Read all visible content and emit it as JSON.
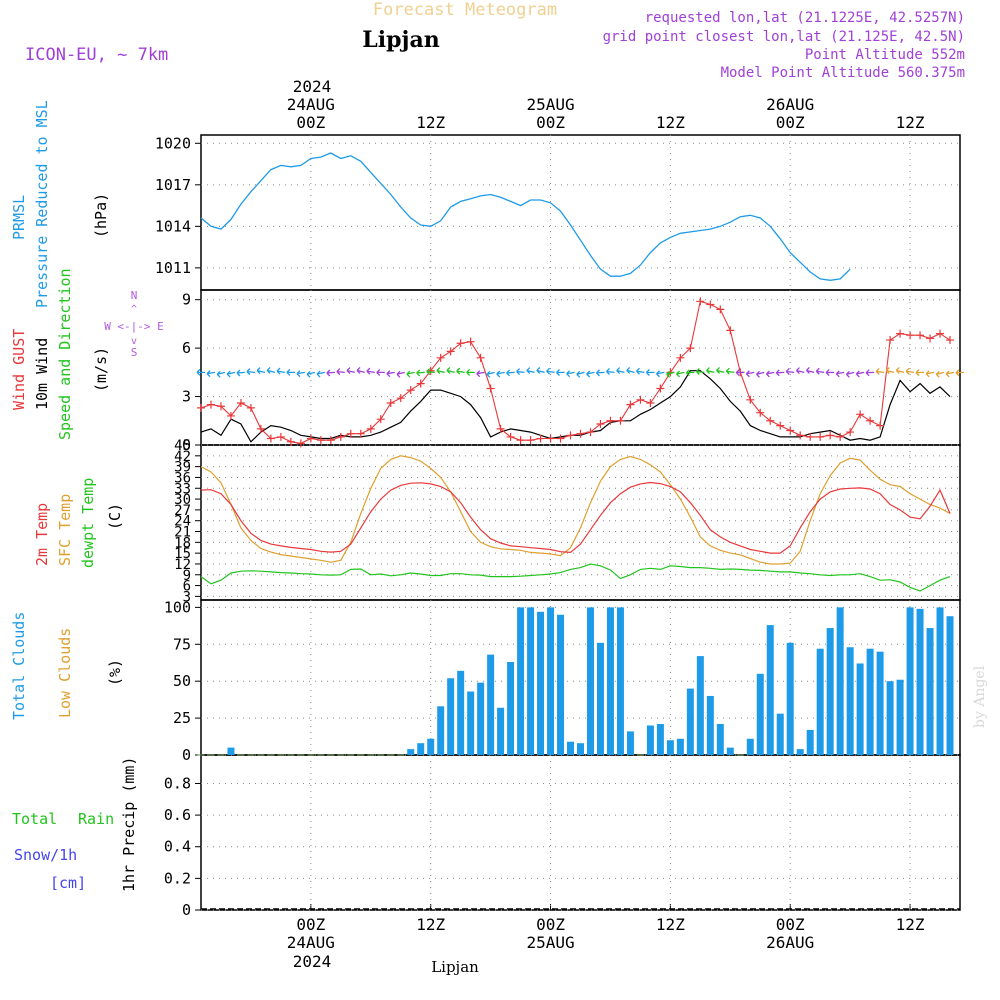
{
  "header": {
    "title": "Forecast Meteogram",
    "location": "Lipjan",
    "model": "ICON-EU, ~ 7km",
    "requested": "requested lon,lat (21.1225E, 42.5257N)",
    "grid_point": "grid point closest lon,lat (21.125E, 42.5N)",
    "point_altitude": "Point Altitude 552m",
    "model_altitude": "Model Point Altitude 560.375m",
    "watermark": "by Angel"
  },
  "time_axis": {
    "year": "2024",
    "top_labels": [
      {
        "hour": 0,
        "time": "00Z",
        "date": "24AUG"
      },
      {
        "hour": 12,
        "time": "12Z",
        "date": ""
      },
      {
        "hour": 24,
        "time": "00Z",
        "date": "25AUG"
      },
      {
        "hour": 36,
        "time": "12Z",
        "date": ""
      },
      {
        "hour": 48,
        "time": "00Z",
        "date": "26AUG"
      },
      {
        "hour": 60,
        "time": "12Z",
        "date": ""
      }
    ],
    "bottom_label": "Lipjan",
    "start_hour": -11,
    "end_hour": 65
  },
  "colors": {
    "blue": "#1e9be8",
    "red": "#e8383a",
    "orange": "#e0a030",
    "green": "#22c41e",
    "purple": "#a040d8",
    "violet": "#b05ae0",
    "snow_blue": "#4444ee",
    "title_tan": "#f0d090",
    "watermark": "#d8d8d8"
  },
  "panels": {
    "pressure": {
      "labels": [
        "PRMSL",
        "Pressure Reduced to MSL",
        "(hPa)"
      ],
      "ticks": [
        1011,
        1014,
        1017,
        1020
      ]
    },
    "wind": {
      "labels": [
        "Wind GUST",
        "10m Wind",
        "Speed and Direction",
        "(m/s)"
      ],
      "compass_ns": "N",
      "compass_we": "W <-|-> E",
      "compass_s": "S",
      "ticks": [
        0,
        3,
        6,
        9
      ]
    },
    "temperature": {
      "labels": [
        "2m Temp",
        "SFC Temp",
        "dewpt Temp",
        "(C)"
      ],
      "ticks": [
        3,
        6,
        9,
        12,
        15,
        18,
        21,
        24,
        27,
        30,
        33,
        36,
        39,
        42,
        45
      ]
    },
    "clouds": {
      "labels": [
        "Total Clouds",
        "Low Clouds",
        "(%)"
      ],
      "ticks": [
        0,
        25,
        50,
        75,
        100
      ]
    },
    "precip": {
      "labels": [
        "Total",
        "Rain",
        "Snow/1h",
        "[cm]",
        "1hr Precip (mm)"
      ],
      "ticks": [
        "0",
        "0.2",
        "0.4",
        "0.6",
        "0.8"
      ]
    }
  },
  "chart_data": [
    {
      "type": "line",
      "title": "PRMSL Pressure Reduced to MSL",
      "ylabel": "hPa",
      "ylim": [
        1009.4,
        1020.6
      ],
      "x_hours": [
        -11,
        -10,
        -9,
        -8,
        -7,
        -6,
        -5,
        -4,
        -3,
        -2,
        -1,
        0,
        1,
        2,
        3,
        4,
        5,
        6,
        7,
        8,
        9,
        10,
        11,
        12,
        13,
        14,
        15,
        16,
        17,
        18,
        19,
        20,
        21,
        22,
        23,
        24,
        25,
        26,
        27,
        28,
        29,
        30,
        31,
        32,
        33,
        34,
        35,
        36,
        37,
        38,
        39,
        40,
        41,
        42,
        43,
        44,
        45,
        46,
        47,
        48,
        49,
        50,
        51,
        52,
        53,
        54,
        55,
        56,
        57,
        58,
        59,
        60,
        61,
        62,
        63,
        64,
        65
      ],
      "series": [
        {
          "name": "PRMSL",
          "values": [
            1014.6,
            1014.0,
            1013.8,
            1014.5,
            1015.6,
            1016.5,
            1017.3,
            1018.1,
            1018.4,
            1018.3,
            1018.4,
            1018.9,
            1019.0,
            1019.3,
            1018.9,
            1019.1,
            1018.7,
            1017.9,
            1017.1,
            1016.3,
            1015.4,
            1014.6,
            1014.1,
            1014.0,
            1014.4,
            1015.4,
            1015.8,
            1016.0,
            1016.2,
            1016.3,
            1016.1,
            1015.8,
            1015.5,
            1015.9,
            1015.9,
            1015.7,
            1015.1,
            1014.1,
            1013.0,
            1011.9,
            1010.9,
            1010.4,
            1010.4,
            1010.6,
            1011.2,
            1012.1,
            1012.8,
            1013.2,
            1013.5,
            1013.6,
            1013.7,
            1013.8,
            1014.0,
            1014.3,
            1014.7,
            1014.8,
            1014.6,
            1014.0,
            1013.1,
            1012.1,
            1011.4,
            1010.7,
            1010.2,
            1010.1,
            1010.2,
            1010.9
          ]
        }
      ]
    },
    {
      "type": "line",
      "title": "Wind GUST / 10m Wind Speed and Direction",
      "ylabel": "m/s",
      "ylim": [
        0,
        9.6
      ],
      "x_hours": [
        -11,
        -10,
        -9,
        -8,
        -7,
        -6,
        -5,
        -4,
        -3,
        -2,
        -1,
        0,
        1,
        2,
        3,
        4,
        5,
        6,
        7,
        8,
        9,
        10,
        11,
        12,
        13,
        14,
        15,
        16,
        17,
        18,
        19,
        20,
        21,
        22,
        23,
        24,
        25,
        26,
        27,
        28,
        29,
        30,
        31,
        32,
        33,
        34,
        35,
        36,
        37,
        38,
        39,
        40,
        41,
        42,
        43,
        44,
        45,
        46,
        47,
        48,
        49,
        50,
        51,
        52,
        53,
        54,
        55,
        56,
        57,
        58,
        59,
        60,
        61,
        62,
        63,
        64,
        65
      ],
      "series": [
        {
          "name": "Wind GUST",
          "values": [
            2.3,
            2.5,
            2.4,
            1.8,
            2.6,
            2.3,
            1.0,
            0.4,
            0.5,
            0.2,
            0.1,
            0.4,
            0.3,
            0.3,
            0.5,
            0.7,
            0.7,
            1.0,
            1.6,
            2.6,
            2.9,
            3.4,
            3.8,
            4.6,
            5.4,
            5.8,
            6.3,
            6.4,
            5.4,
            3.5,
            1.0,
            0.5,
            0.3,
            0.3,
            0.4,
            0.4,
            0.4,
            0.6,
            0.7,
            0.8,
            1.3,
            1.5,
            1.5,
            2.5,
            2.8,
            2.6,
            3.5,
            4.5,
            5.4,
            6.0,
            8.9,
            8.7,
            8.4,
            7.1,
            4.5,
            2.8,
            2.0,
            1.5,
            1.2,
            0.9,
            0.6,
            0.5,
            0.5,
            0.6,
            0.5,
            0.8,
            1.9,
            1.5,
            1.2,
            6.5,
            6.9,
            6.8,
            6.8,
            6.6,
            6.9,
            6.5
          ]
        },
        {
          "name": "10m Wind",
          "values": [
            0.8,
            1.0,
            0.6,
            1.6,
            1.3,
            0.2,
            0.8,
            1.2,
            1.1,
            0.9,
            0.6,
            0.5,
            0.4,
            0.4,
            0.6,
            0.5,
            0.5,
            0.6,
            0.8,
            1.1,
            1.4,
            2.1,
            2.7,
            3.4,
            3.4,
            3.2,
            3.0,
            2.5,
            1.7,
            0.5,
            0.8,
            1.0,
            0.9,
            0.8,
            0.6,
            0.4,
            0.5,
            0.6,
            0.6,
            0.8,
            0.9,
            1.4,
            1.5,
            1.5,
            1.9,
            2.2,
            2.6,
            3.0,
            3.6,
            4.6,
            4.6,
            4.1,
            3.5,
            2.7,
            2.1,
            1.2,
            0.9,
            0.7,
            0.5,
            0.5,
            0.5,
            0.7,
            0.8,
            0.9,
            0.6,
            0.3,
            0.4,
            0.3,
            0.5,
            2.5,
            4.0,
            3.3,
            3.8,
            3.2,
            3.6,
            3.0
          ]
        },
        {
          "name": "Direction",
          "values": []
        }
      ]
    },
    {
      "type": "line",
      "title": "2m Temp / SFC Temp / dewpt Temp",
      "ylabel": "C",
      "ylim": [
        2.0,
        45.0
      ],
      "x_hours": [
        -11,
        -10,
        -9,
        -8,
        -7,
        -6,
        -5,
        -4,
        -3,
        -2,
        -1,
        0,
        1,
        2,
        3,
        4,
        5,
        6,
        7,
        8,
        9,
        10,
        11,
        12,
        13,
        14,
        15,
        16,
        17,
        18,
        19,
        20,
        21,
        22,
        23,
        24,
        25,
        26,
        27,
        28,
        29,
        30,
        31,
        32,
        33,
        34,
        35,
        36,
        37,
        38,
        39,
        40,
        41,
        42,
        43,
        44,
        45,
        46,
        47,
        48,
        49,
        50,
        51,
        52,
        53,
        54,
        55,
        56,
        57,
        58,
        59,
        60,
        61,
        62,
        63,
        64,
        65
      ],
      "series": [
        {
          "name": "2m Temp",
          "values": [
            32.5,
            32.6,
            31.5,
            28.5,
            24.0,
            20.5,
            18.5,
            17.5,
            17.0,
            16.6,
            16.3,
            16.0,
            15.5,
            15.3,
            15.5,
            17.5,
            22.0,
            26.5,
            30.0,
            32.5,
            33.8,
            34.4,
            34.5,
            34.2,
            33.5,
            32.0,
            29.0,
            25.0,
            21.5,
            19.0,
            17.8,
            17.0,
            16.8,
            16.5,
            16.3,
            16.0,
            15.4,
            15.2,
            17.5,
            21.5,
            25.5,
            29.0,
            31.5,
            33.3,
            34.2,
            34.6,
            34.3,
            33.5,
            32.0,
            29.0,
            25.5,
            21.5,
            19.5,
            18.0,
            17.0,
            16.0,
            15.5,
            15.0,
            15.0,
            17.0,
            22.0,
            26.5,
            30.0,
            32.0,
            32.8,
            33.0,
            33.1,
            32.8,
            31.5,
            28.5,
            27.0,
            25.0,
            24.5,
            28.0,
            32.5,
            26.0
          ]
        },
        {
          "name": "SFC Temp",
          "values": [
            39.0,
            37.5,
            34.5,
            28.5,
            22.0,
            18.5,
            16.3,
            15.3,
            14.6,
            14.2,
            13.8,
            13.4,
            13.0,
            12.5,
            13.0,
            18.0,
            26.0,
            33.0,
            38.5,
            41.0,
            42.0,
            41.5,
            40.5,
            38.5,
            36.0,
            32.0,
            26.5,
            21.0,
            18.0,
            16.8,
            16.2,
            16.0,
            15.8,
            15.2,
            15.0,
            14.8,
            14.3,
            16.5,
            22.0,
            29.0,
            35.0,
            39.0,
            41.0,
            41.8,
            41.0,
            39.5,
            37.5,
            34.0,
            30.0,
            25.0,
            19.5,
            17.0,
            15.8,
            15.0,
            14.5,
            13.5,
            12.5,
            12.0,
            12.0,
            12.2,
            15.5,
            24.0,
            31.5,
            36.5,
            40.0,
            41.3,
            40.8,
            38.0,
            35.5,
            34.0,
            33.5,
            31.5,
            30.0,
            28.5,
            27.5,
            26.0
          ]
        },
        {
          "name": "dewpt Temp",
          "values": [
            8.5,
            6.5,
            7.5,
            9.5,
            10.0,
            10.1,
            10.0,
            9.8,
            9.6,
            9.5,
            9.3,
            9.2,
            9.0,
            8.9,
            9.0,
            10.5,
            10.6,
            9.0,
            9.2,
            8.7,
            9.0,
            9.5,
            9.2,
            8.8,
            8.8,
            9.3,
            9.3,
            9.0,
            8.9,
            8.5,
            8.5,
            8.5,
            8.6,
            8.8,
            9.0,
            9.2,
            9.6,
            10.5,
            11.0,
            12.0,
            11.5,
            10.3,
            8.0,
            9.0,
            10.5,
            10.8,
            10.5,
            11.5,
            11.3,
            11.0,
            11.0,
            10.8,
            10.5,
            10.6,
            10.5,
            10.3,
            10.2,
            10.0,
            9.8,
            9.8,
            9.5,
            9.3,
            9.0,
            8.8,
            9.0,
            9.0,
            9.3,
            8.5,
            7.5,
            7.6,
            7.0,
            5.5,
            4.5,
            6.0,
            7.5,
            8.5
          ]
        }
      ]
    },
    {
      "type": "bar",
      "title": "Total Clouds / Low Clouds",
      "ylabel": "%",
      "ylim": [
        0,
        105
      ],
      "x_hours": [
        -11,
        -10,
        -9,
        -8,
        -7,
        -6,
        -5,
        -4,
        -3,
        -2,
        -1,
        0,
        1,
        2,
        3,
        4,
        5,
        6,
        7,
        8,
        9,
        10,
        11,
        12,
        13,
        14,
        15,
        16,
        17,
        18,
        19,
        20,
        21,
        22,
        23,
        24,
        25,
        26,
        27,
        28,
        29,
        30,
        31,
        32,
        33,
        34,
        35,
        36,
        37,
        38,
        39,
        40,
        41,
        42,
        43,
        44,
        45,
        46,
        47,
        48,
        49,
        50,
        51,
        52,
        53,
        54,
        55,
        56,
        57,
        58,
        59,
        60,
        61,
        62,
        63,
        64,
        65
      ],
      "series": [
        {
          "name": "Total Clouds",
          "values": [
            0,
            0,
            0,
            5,
            0,
            0,
            0,
            0,
            0,
            0,
            0,
            0,
            0,
            0,
            0,
            0,
            0,
            0,
            0,
            0,
            0,
            4,
            8,
            11,
            33,
            52,
            57,
            43,
            49,
            68,
            32,
            63,
            100,
            100,
            97,
            100,
            95,
            9,
            8,
            100,
            76,
            100,
            100,
            16,
            0,
            20,
            21,
            10,
            11,
            45,
            67,
            40,
            21,
            5,
            0,
            11,
            55,
            88,
            28,
            76,
            4,
            17,
            72,
            86,
            100,
            73,
            62,
            72,
            70,
            50,
            51,
            100,
            99,
            86,
            100,
            94
          ]
        },
        {
          "name": "Low Clouds",
          "values": []
        }
      ]
    },
    {
      "type": "bar",
      "title": "1hr Precip (mm)",
      "ylabel": "1hr Precip (mm)",
      "ylim": [
        0,
        0.98
      ],
      "series": [
        {
          "name": "Total Rain",
          "values": []
        },
        {
          "name": "Snow/1h",
          "values": []
        }
      ]
    }
  ]
}
